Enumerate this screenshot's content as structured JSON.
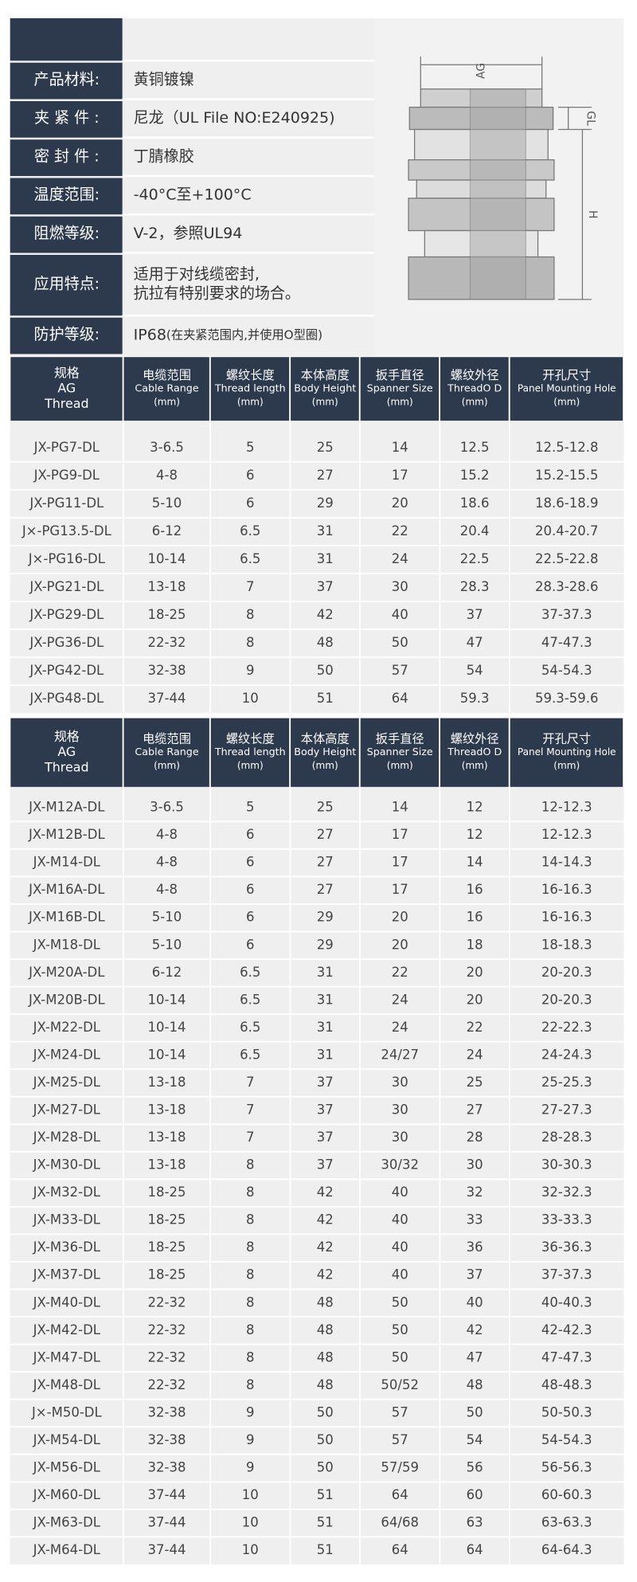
{
  "specs": [
    {
      "label": "产品材料:",
      "value": [
        "黄铜镀镍"
      ]
    },
    {
      "label": "夹 紧 件 :",
      "value": [
        "尼龙（UL File NO:E240925)"
      ]
    },
    {
      "label": "密 封 件 :",
      "value": [
        "丁腈橡胶"
      ]
    },
    {
      "label": "温度范围:",
      "value": [
        "-40°C至+100°C"
      ]
    },
    {
      "label": "阻燃等级:",
      "value": [
        "V-2，参照UL94"
      ]
    },
    {
      "label": "应用特点:",
      "value": [
        "适用于对线缆密封,",
        "抗拉有特别要求的场合。"
      ]
    },
    {
      "label": "防护等级:",
      "value": [
        "IP68",
        "(在夹紧范围内,并使用O型圈)"
      ]
    }
  ],
  "diagram": {
    "ag": "AG",
    "gl": "GL",
    "h": "H"
  },
  "tables": [
    {
      "header": [
        [
          "规格",
          "AG",
          "Thread"
        ],
        [
          "电缆范围",
          "Cable Range",
          "(mm)"
        ],
        [
          "螺纹长度",
          "Thread length",
          "(mm)"
        ],
        [
          "本体高度",
          "Body Height",
          "(mm)"
        ],
        [
          "扳手直径",
          "Spanner Size",
          "(mm)"
        ],
        [
          "螺纹外径",
          "ThreadO D",
          "(mm)"
        ],
        [
          "开孔尺寸",
          "Panel Mounting Hole",
          "(mm)"
        ]
      ],
      "rows": [
        [
          "JX-PG7-DL",
          "3-6.5",
          "5",
          "25",
          "14",
          "12.5",
          "12.5-12.8"
        ],
        [
          "JX-PG9-DL",
          "4-8",
          "6",
          "27",
          "17",
          "15.2",
          "15.2-15.5"
        ],
        [
          "JX-PG11-DL",
          "5-10",
          "6",
          "29",
          "20",
          "18.6",
          "18.6-18.9"
        ],
        [
          "J×-PG13.5-DL",
          "6-12",
          "6.5",
          "31",
          "22",
          "20.4",
          "20.4-20.7"
        ],
        [
          "J×-PG16-DL",
          "10-14",
          "6.5",
          "31",
          "24",
          "22.5",
          "22.5-22.8"
        ],
        [
          "JX-PG21-DL",
          "13-18",
          "7",
          "37",
          "30",
          "28.3",
          "28.3-28.6"
        ],
        [
          "JX-PG29-DL",
          "18-25",
          "8",
          "42",
          "40",
          "37",
          "37-37.3"
        ],
        [
          "JX-PG36-DL",
          "22-32",
          "8",
          "48",
          "50",
          "47",
          "47-47.3"
        ],
        [
          "JX-PG42-DL",
          "32-38",
          "9",
          "50",
          "57",
          "54",
          "54-54.3"
        ],
        [
          "JX-PG48-DL",
          "37-44",
          "10",
          "51",
          "64",
          "59.3",
          "59.3-59.6"
        ]
      ]
    },
    {
      "header": [
        [
          "规格",
          "AG",
          "Thread"
        ],
        [
          "电缆范围",
          "Cable Range",
          "(mm)"
        ],
        [
          "螺纹长度",
          "Thread length",
          "(mm)"
        ],
        [
          "本体高度",
          "Body Height",
          "(mm)"
        ],
        [
          "扳手直径",
          "Spanner Size",
          "(mm)"
        ],
        [
          "螺纹外径",
          "ThreadO D",
          "(mm)"
        ],
        [
          "开孔尺寸",
          "Panel Mounting Hole",
          "(mm)"
        ]
      ],
      "rows": [
        [
          "JX-M12A-DL",
          "3-6.5",
          "5",
          "25",
          "14",
          "12",
          "12-12.3"
        ],
        [
          "JX-M12B-DL",
          "4-8",
          "6",
          "27",
          "17",
          "12",
          "12-12.3"
        ],
        [
          "JX-M14-DL",
          "4-8",
          "6",
          "27",
          "17",
          "14",
          "14-14.3"
        ],
        [
          "JX-M16A-DL",
          "4-8",
          "6",
          "27",
          "17",
          "16",
          "16-16.3"
        ],
        [
          "JX-M16B-DL",
          "5-10",
          "6",
          "29",
          "20",
          "16",
          "16-16.3"
        ],
        [
          "JX-M18-DL",
          "5-10",
          "6",
          "29",
          "20",
          "18",
          "18-18.3"
        ],
        [
          "JX-M20A-DL",
          "6-12",
          "6.5",
          "31",
          "22",
          "20",
          "20-20.3"
        ],
        [
          "JX-M20B-DL",
          "10-14",
          "6.5",
          "31",
          "24",
          "20",
          "20-20.3"
        ],
        [
          "JX-M22-DL",
          "10-14",
          "6.5",
          "31",
          "24",
          "22",
          "22-22.3"
        ],
        [
          "JX-M24-DL",
          "10-14",
          "6.5",
          "31",
          "24/27",
          "24",
          "24-24.3"
        ],
        [
          "JX-M25-DL",
          "13-18",
          "7",
          "37",
          "30",
          "25",
          "25-25.3"
        ],
        [
          "JX-M27-DL",
          "13-18",
          "7",
          "37",
          "30",
          "27",
          "27-27.3"
        ],
        [
          "JX-M28-DL",
          "13-18",
          "7",
          "37",
          "30",
          "28",
          "28-28.3"
        ],
        [
          "JX-M30-DL",
          "13-18",
          "8",
          "37",
          "30/32",
          "30",
          "30-30.3"
        ],
        [
          "JX-M32-DL",
          "18-25",
          "8",
          "42",
          "40",
          "32",
          "32-32.3"
        ],
        [
          "JX-M33-DL",
          "18-25",
          "8",
          "42",
          "40",
          "33",
          "33-33.3"
        ],
        [
          "JX-M36-DL",
          "18-25",
          "8",
          "42",
          "40",
          "36",
          "36-36.3"
        ],
        [
          "JX-M37-DL",
          "18-25",
          "8",
          "42",
          "40",
          "37",
          "37-37.3"
        ],
        [
          "JX-M40-DL",
          "22-32",
          "8",
          "48",
          "50",
          "40",
          "40-40.3"
        ],
        [
          "JX-M42-DL",
          "22-32",
          "8",
          "48",
          "50",
          "42",
          "42-42.3"
        ],
        [
          "JX-M47-DL",
          "22-32",
          "8",
          "48",
          "50",
          "47",
          "47-47.3"
        ],
        [
          "JX-M48-DL",
          "22-32",
          "8",
          "48",
          "50/52",
          "48",
          "48-48.3"
        ],
        [
          "J×-M50-DL",
          "32-38",
          "9",
          "50",
          "57",
          "50",
          "50-50.3"
        ],
        [
          "JX-M54-DL",
          "32-38",
          "9",
          "50",
          "57",
          "54",
          "54-54.3"
        ],
        [
          "JX-M56-DL",
          "32-38",
          "9",
          "50",
          "57/59",
          "56",
          "56-56.3"
        ],
        [
          "JX-M60-DL",
          "37-44",
          "10",
          "51",
          "64",
          "60",
          "60-60.3"
        ],
        [
          "JX-M63-DL",
          "37-44",
          "10",
          "51",
          "64/68",
          "63",
          "63-63.3"
        ],
        [
          "JX-M64-DL",
          "37-44",
          "10",
          "51",
          "64",
          "64",
          "64-64.3"
        ]
      ]
    }
  ]
}
